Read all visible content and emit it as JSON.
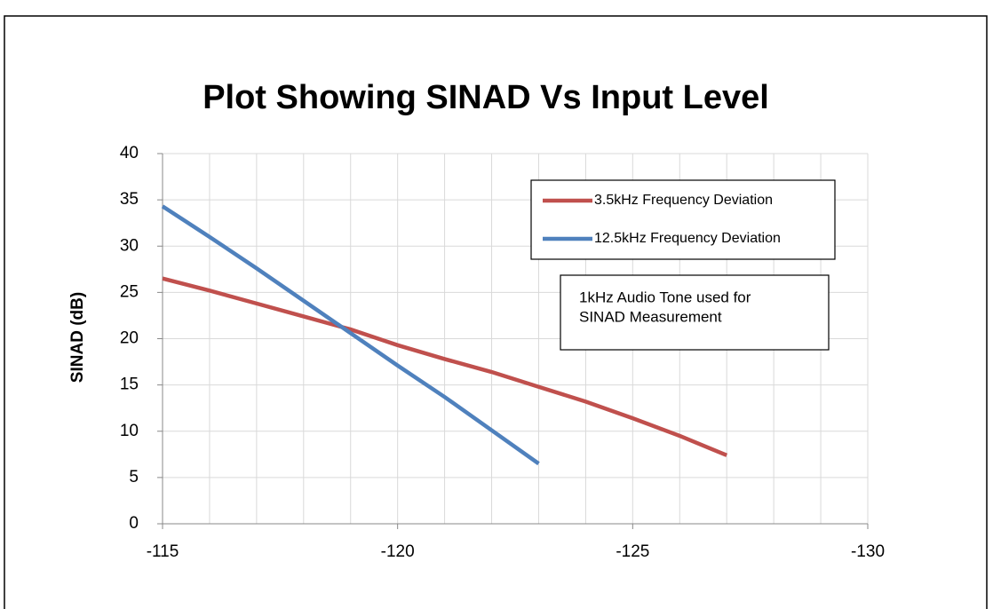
{
  "chart_data": {
    "type": "line",
    "title": "Plot Showing SINAD Vs Input Level",
    "ylabel": "SINAD (dB)",
    "x": [
      -115,
      -116,
      -117,
      -118,
      -119,
      -120,
      -121,
      -122,
      -123,
      -124,
      -125,
      -126,
      -127
    ],
    "series": [
      {
        "name": "3.5kHz Frequency Deviation",
        "color": "#c0504d",
        "values": [
          26.5,
          25.2,
          23.8,
          22.4,
          21,
          19.3,
          17.8,
          16.4,
          14.8,
          13.2,
          11.4,
          9.5,
          7.4
        ]
      },
      {
        "name": "12.5kHz Frequency Deviation",
        "color": "#4f81bd",
        "values": [
          34.3,
          31.0,
          27.6,
          24.1,
          20.6,
          17.1,
          13.7,
          10.1,
          6.5,
          null,
          null,
          null,
          null
        ]
      }
    ],
    "annotation": [
      "1kHz Audio Tone used for",
      "SINAD Measurement"
    ],
    "xlim": [
      -115,
      -130
    ],
    "xticks": [
      -115,
      -120,
      -125,
      -130
    ],
    "xminorticks": [
      -116,
      -117,
      -118,
      -119,
      -121,
      -122,
      -123,
      -124,
      -126,
      -127,
      -128,
      -129
    ],
    "ylim": [
      0,
      40
    ],
    "yticks": [
      0,
      5,
      10,
      15,
      20,
      25,
      30,
      35,
      40
    ],
    "grid": true,
    "legend": "upper right"
  }
}
